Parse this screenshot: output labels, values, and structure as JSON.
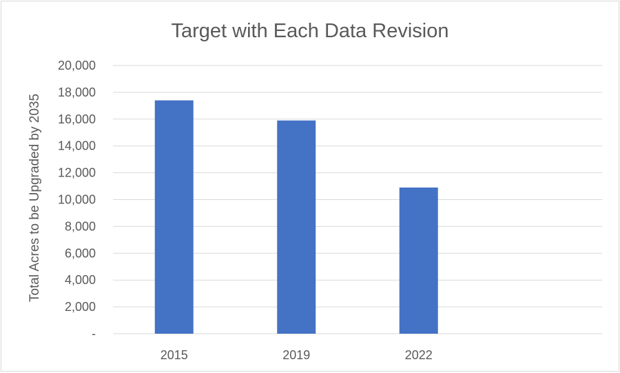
{
  "chart_data": {
    "type": "bar",
    "title": "Target with Each Data Revision",
    "xlabel": "",
    "ylabel": "Total Acres to be Upgraded by 2035",
    "categories": [
      "2015",
      "2019",
      "2022"
    ],
    "values": [
      17400,
      15900,
      10900
    ],
    "ylim": [
      0,
      20000
    ],
    "ytick_values": [
      0,
      2000,
      4000,
      6000,
      8000,
      10000,
      12000,
      14000,
      16000,
      18000,
      20000
    ],
    "ytick_labels": [
      "-",
      "2,000",
      "4,000",
      "6,000",
      "8,000",
      "10,000",
      "12,000",
      "14,000",
      "16,000",
      "18,000",
      "20,000"
    ],
    "grid": true,
    "legend": "none",
    "bar_color": "#4472C4"
  }
}
